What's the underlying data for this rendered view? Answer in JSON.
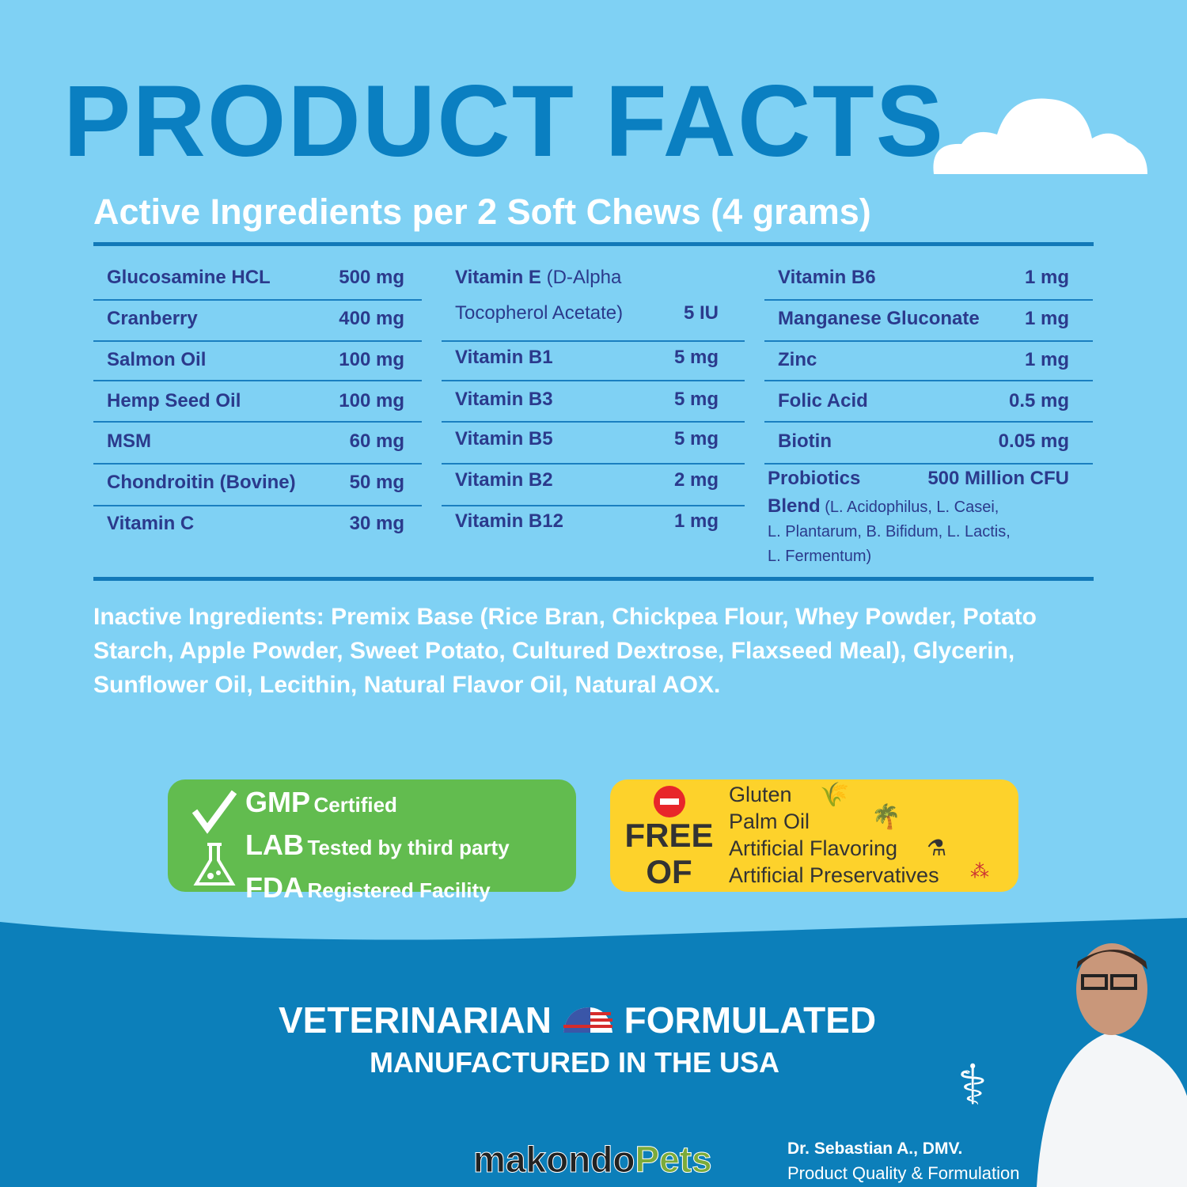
{
  "title": "PRODUCT FACTS",
  "subtitle": "Active Ingredients per 2 Soft Chews (4 grams)",
  "columns": [
    [
      {
        "name": "Glucosamine HCL",
        "amount": "500 mg"
      },
      {
        "name": "Cranberry",
        "amount": "400 mg"
      },
      {
        "name": "Salmon Oil",
        "amount": "100 mg"
      },
      {
        "name": "Hemp Seed Oil",
        "amount": "100 mg"
      },
      {
        "name": "MSM",
        "amount": "60 mg"
      },
      {
        "name": "Chondroitin (Bovine)",
        "amount": "50 mg"
      },
      {
        "name": "Vitamin C",
        "amount": "30 mg"
      }
    ],
    [
      {
        "name": "Vitamin B1",
        "amount": "5 mg"
      },
      {
        "name": "Vitamin B3",
        "amount": "5 mg"
      },
      {
        "name": "Vitamin B5",
        "amount": "5 mg"
      },
      {
        "name": "Vitamin B2",
        "amount": "2 mg"
      },
      {
        "name": "Vitamin B12",
        "amount": "1 mg"
      }
    ],
    [
      {
        "name": "Vitamin B6",
        "amount": "1 mg"
      },
      {
        "name": "Manganese Gluconate",
        "amount": "1 mg"
      },
      {
        "name": "Zinc",
        "amount": "1 mg"
      },
      {
        "name": "Folic Acid",
        "amount": "0.5 mg"
      },
      {
        "name": "Biotin",
        "amount": "0.05 mg"
      }
    ]
  ],
  "vitamin_e": {
    "name": "Vitamin E",
    "detail_1": "(D-Alpha",
    "detail_2": "Tocopherol Acetate)",
    "amount": "5 IU"
  },
  "probiotics": {
    "name": "Probiotics",
    "amount": "500 Million CFU",
    "name_2": "Blend",
    "detail_1": "(L. Acidophilus, L. Casei,",
    "detail_2": "L. Plantarum, B. Bifidum, L. Lactis,",
    "detail_3": "L. Fermentum)"
  },
  "inactive": "Inactive Ingredients: Premix Base (Rice Bran, Chickpea Flour, Whey Powder, Potato Starch, Apple Powder, Sweet Potato, Cultured Dextrose, Flaxseed Meal), Glycerin, Sunflower Oil, Lecithin, Natural Flavor Oil, Natural AOX.",
  "certs": [
    {
      "big": "GMP",
      "small": "Certified"
    },
    {
      "big": "LAB",
      "small": "Tested by third party"
    },
    {
      "big": "FDA",
      "small": "Registered Facility"
    }
  ],
  "free_of": {
    "label_1": "FREE",
    "label_2": "OF",
    "items": [
      "Gluten",
      "Palm Oil",
      "Artificial Flavoring",
      "Artificial Preservatives"
    ]
  },
  "footer": {
    "line1_a": "VETERINARIAN",
    "line1_b": "FORMULATED",
    "line2": "MANUFACTURED IN THE USA",
    "brand_a": "makondo",
    "brand_b": "Pets",
    "doctor": "Dr. Sebastian A., DMV.",
    "doctor_role": "Product Quality & Formulation"
  },
  "colors": {
    "background": "#7fd1f4",
    "title": "#0a7fc1",
    "text": "#2b3a8c",
    "band": "#0c7fba",
    "green": "#62bc4f",
    "yellow": "#fdd22b"
  }
}
